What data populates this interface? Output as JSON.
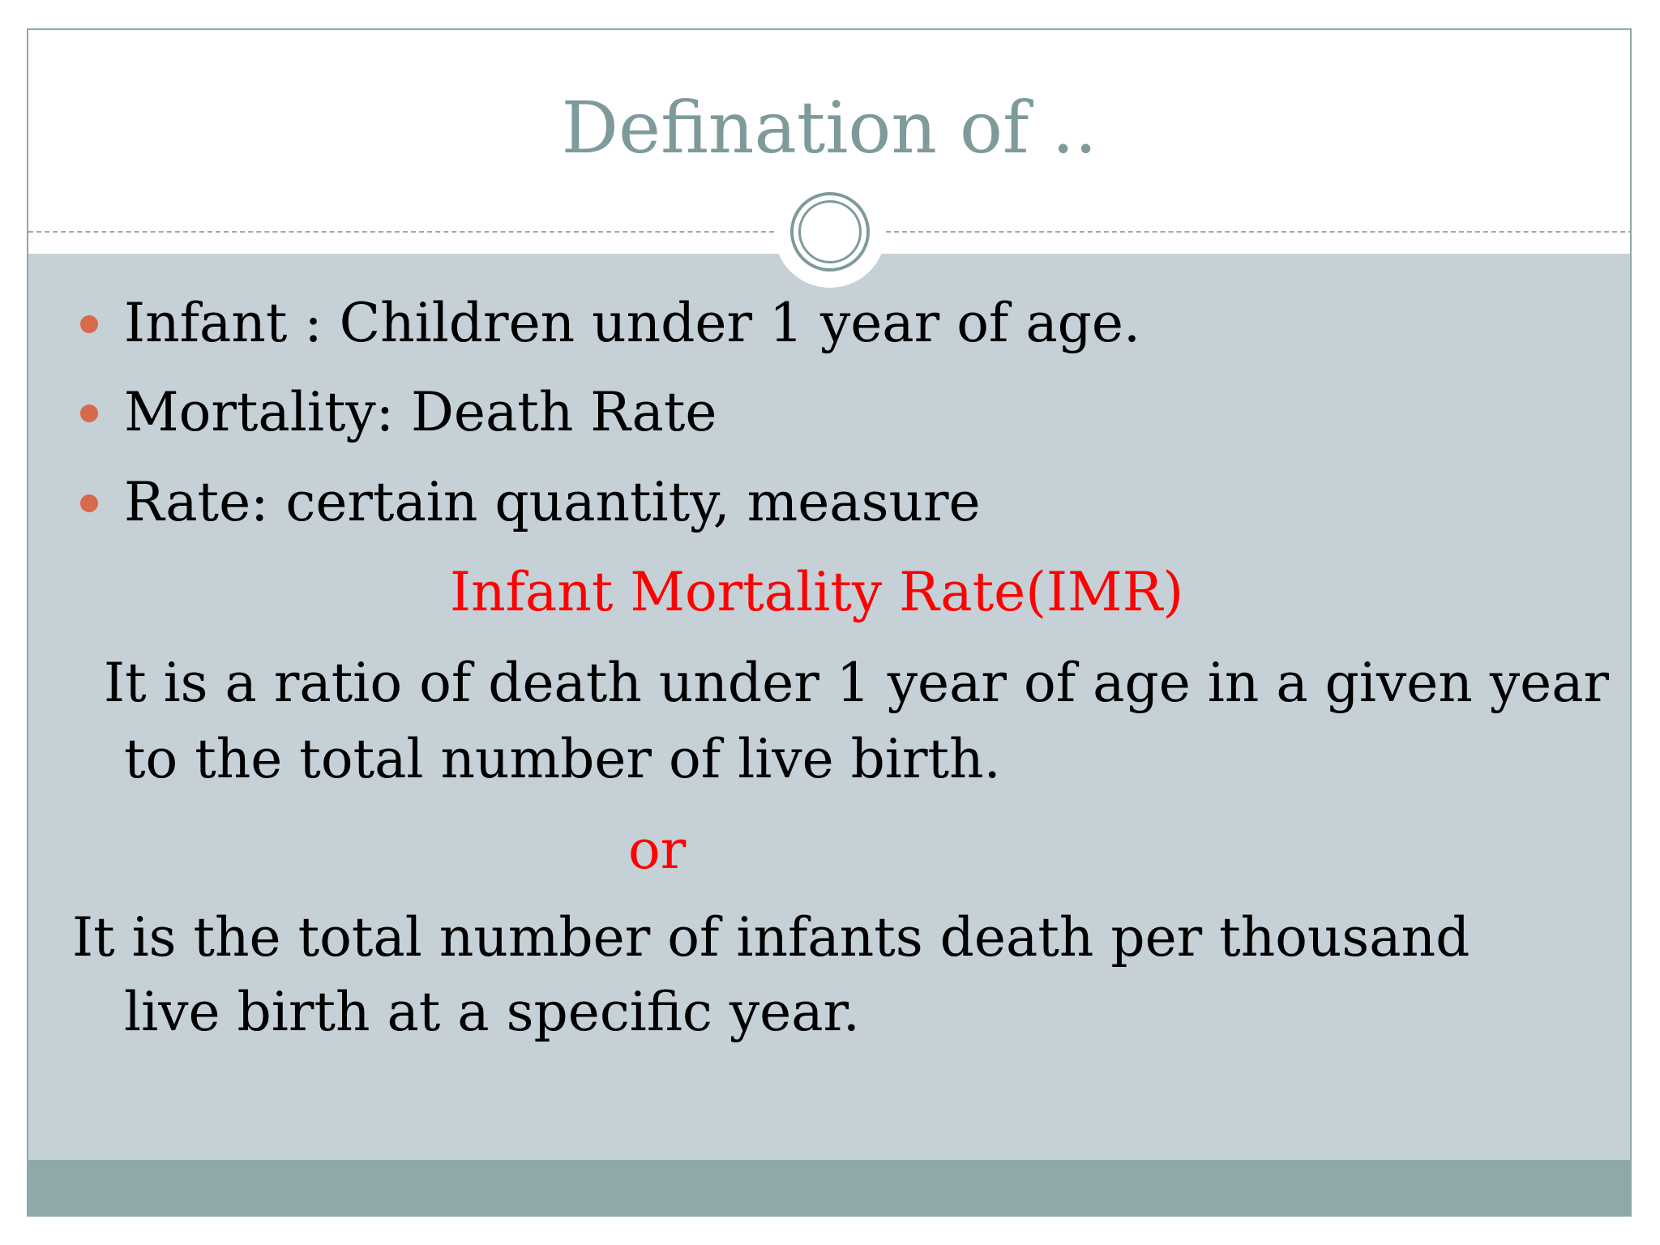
{
  "slide": {
    "title": "Defination of ..",
    "bullets": [
      "Infant : Children under 1 year of age.",
      "Mortality: Death Rate",
      "Rate: certain quantity, measure"
    ],
    "subheading": "Infant Mortality Rate(IMR)",
    "definition_1_line_1": "It is a ratio of death under 1 year of age in a given year",
    "definition_1_line_2": "to the total number of live birth.",
    "separator": "or",
    "definition_2_line_1": "It is the total number of infants death per thousand",
    "definition_2_line_2": "live birth at a specific year."
  },
  "colors": {
    "title": "#7e9a9a",
    "content_background": "#c5d1d7",
    "footer_band": "#8fa9a9",
    "bullet": "#d8694b",
    "highlight": "#ff0000"
  }
}
